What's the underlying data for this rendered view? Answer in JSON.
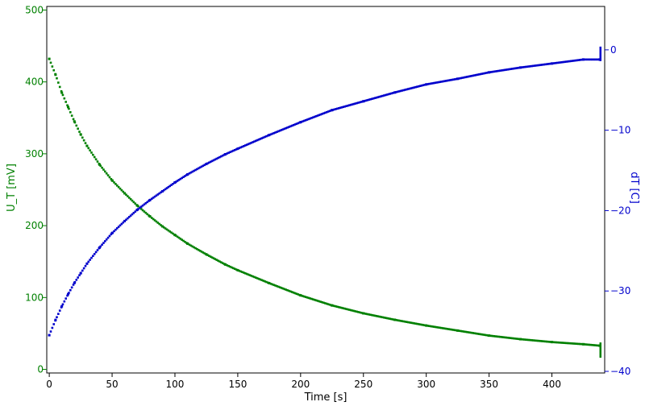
{
  "chart_data": {
    "type": "scatter",
    "title": "",
    "xlabel": "Time [s]",
    "ylabel_left": "U_T [mV]",
    "ylabel_right": "dT [C]",
    "xlim": [
      -2,
      442
    ],
    "ylim_left": [
      -5,
      505
    ],
    "ylim_right": [
      -40.2,
      5.4
    ],
    "x_ticks": [
      0,
      50,
      100,
      150,
      200,
      250,
      300,
      350,
      400
    ],
    "y_left_ticks": [
      0,
      100,
      200,
      300,
      400,
      500
    ],
    "y_right_ticks": [
      0,
      -10,
      -20,
      -30,
      -40
    ],
    "grid": false,
    "legend": "none",
    "colors": {
      "left_axis": "#008000",
      "right_axis": "#0000cc",
      "frame": "#000000"
    },
    "series": [
      {
        "axis": "left",
        "color": "#008000",
        "x": [
          0,
          5,
          10,
          15,
          20,
          25,
          30,
          40,
          50,
          60,
          70,
          80,
          90,
          100,
          110,
          125,
          140,
          150,
          175,
          200,
          225,
          250,
          275,
          300,
          325,
          350,
          375,
          400,
          425,
          438
        ],
        "y": [
          432,
          410,
          385,
          365,
          345,
          327,
          311,
          285,
          263,
          245,
          228,
          213,
          199,
          187,
          175,
          160,
          146,
          138,
          120,
          103,
          89,
          78,
          69,
          61,
          54,
          47,
          42,
          38,
          35,
          33
        ]
      },
      {
        "axis": "right",
        "color": "#0000cc",
        "x": [
          0,
          5,
          10,
          15,
          20,
          25,
          30,
          40,
          50,
          60,
          70,
          80,
          90,
          100,
          110,
          125,
          140,
          150,
          175,
          200,
          225,
          250,
          275,
          300,
          325,
          350,
          375,
          400,
          425,
          438
        ],
        "y": [
          -35.5,
          -33.6,
          -31.9,
          -30.4,
          -29.0,
          -27.8,
          -26.6,
          -24.6,
          -22.8,
          -21.3,
          -19.9,
          -18.7,
          -17.6,
          -16.5,
          -15.5,
          -14.2,
          -13.0,
          -12.3,
          -10.6,
          -9.0,
          -7.5,
          -6.4,
          -5.3,
          -4.3,
          -3.6,
          -2.8,
          -2.2,
          -1.7,
          -1.2,
          -1.2
        ]
      }
    ]
  }
}
